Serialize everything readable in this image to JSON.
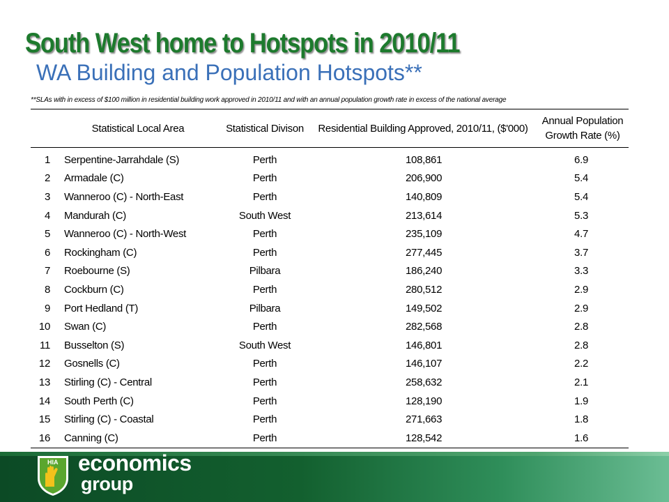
{
  "slide": {
    "title": "South West home to Hotspots in 2010/11",
    "subtitle": "WA Building and Population Hotspots**",
    "footnote": "**SLAs with in excess of $100 million in residential building work approved in 2010/11 and with an annual population growth rate in excess of the national average"
  },
  "table": {
    "headers": {
      "area": "Statistical Local Area",
      "division": "Statistical Divison",
      "residential": "Residential Building Approved, 2010/11, ($'000)",
      "growth_line1": "Annual Population",
      "growth_line2": "Growth Rate (%)"
    },
    "rows": [
      {
        "rank": "1",
        "area": "Serpentine-Jarrahdale (S)",
        "division": "Perth",
        "residential": "108,861",
        "growth": "6.9"
      },
      {
        "rank": "2",
        "area": "Armadale (C)",
        "division": "Perth",
        "residential": "206,900",
        "growth": "5.4"
      },
      {
        "rank": "3",
        "area": "Wanneroo (C) - North-East",
        "division": "Perth",
        "residential": "140,809",
        "growth": "5.4"
      },
      {
        "rank": "4",
        "area": "Mandurah (C)",
        "division": "South West",
        "residential": "213,614",
        "growth": "5.3"
      },
      {
        "rank": "5",
        "area": "Wanneroo (C) - North-West",
        "division": "Perth",
        "residential": "235,109",
        "growth": "4.7"
      },
      {
        "rank": "6",
        "area": "Rockingham (C)",
        "division": "Perth",
        "residential": "277,445",
        "growth": "3.7"
      },
      {
        "rank": "7",
        "area": "Roebourne (S)",
        "division": "Pilbara",
        "residential": "186,240",
        "growth": "3.3"
      },
      {
        "rank": "8",
        "area": "Cockburn (C)",
        "division": "Perth",
        "residential": "280,512",
        "growth": "2.9"
      },
      {
        "rank": "9",
        "area": "Port Hedland (T)",
        "division": "Pilbara",
        "residential": "149,502",
        "growth": "2.9"
      },
      {
        "rank": "10",
        "area": "Swan (C)",
        "division": "Perth",
        "residential": "282,568",
        "growth": "2.8"
      },
      {
        "rank": "11",
        "area": "Busselton (S)",
        "division": "South West",
        "residential": "146,801",
        "growth": "2.8"
      },
      {
        "rank": "12",
        "area": "Gosnells (C)",
        "division": "Perth",
        "residential": "146,107",
        "growth": "2.2"
      },
      {
        "rank": "13",
        "area": "Stirling (C) - Central",
        "division": "Perth",
        "residential": "258,632",
        "growth": "2.1"
      },
      {
        "rank": "14",
        "area": "South Perth (C)",
        "division": "Perth",
        "residential": "128,190",
        "growth": "1.9"
      },
      {
        "rank": "15",
        "area": "Stirling (C) - Coastal",
        "division": "Perth",
        "residential": "271,663",
        "growth": "1.8"
      },
      {
        "rank": "16",
        "area": "Canning (C)",
        "division": "Perth",
        "residential": "128,542",
        "growth": "1.6"
      }
    ]
  },
  "footer": {
    "logo_badge_text": "HIA",
    "logo_word1": "economics",
    "logo_word2": "group"
  },
  "colors": {
    "title": "#1d7a2d",
    "subtitle": "#3a70b8",
    "footer_dark": "#0c4a25",
    "footer_light": "#6bbd94",
    "logo_badge": "#5aa62e",
    "logo_hand": "#f2c21b"
  }
}
